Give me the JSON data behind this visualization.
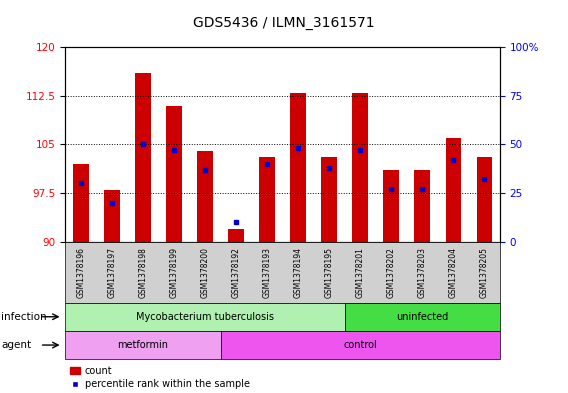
{
  "title": "GDS5436 / ILMN_3161571",
  "samples": [
    "GSM1378196",
    "GSM1378197",
    "GSM1378198",
    "GSM1378199",
    "GSM1378200",
    "GSM1378192",
    "GSM1378193",
    "GSM1378194",
    "GSM1378195",
    "GSM1378201",
    "GSM1378202",
    "GSM1378203",
    "GSM1378204",
    "GSM1378205"
  ],
  "counts": [
    102,
    98,
    116,
    111,
    104,
    92,
    103,
    113,
    103,
    113,
    101,
    101,
    106,
    103
  ],
  "percentiles": [
    30,
    20,
    50,
    47,
    37,
    10,
    40,
    48,
    38,
    47,
    27,
    27,
    42,
    32
  ],
  "ylim_left": [
    90,
    120
  ],
  "ylim_right": [
    0,
    100
  ],
  "yticks_left": [
    90,
    97.5,
    105,
    112.5,
    120
  ],
  "yticks_right": [
    0,
    25,
    50,
    75,
    100
  ],
  "bar_color": "#cc0000",
  "percentile_color": "#0000cc",
  "bar_width": 0.5,
  "infection_groups": [
    {
      "label": "Mycobacterium tuberculosis",
      "start": 0,
      "end": 9,
      "color": "#b0f0b0"
    },
    {
      "label": "uninfected",
      "start": 9,
      "end": 14,
      "color": "#44dd44"
    }
  ],
  "agent_groups": [
    {
      "label": "metformin",
      "start": 0,
      "end": 5,
      "color": "#f0a0f0"
    },
    {
      "label": "control",
      "start": 5,
      "end": 14,
      "color": "#ee55ee"
    }
  ],
  "infection_label": "infection",
  "agent_label": "agent",
  "legend_count_label": "count",
  "legend_percentile_label": "percentile rank within the sample",
  "title_fontsize": 10,
  "tick_fontsize": 7.5,
  "label_fontsize": 8
}
